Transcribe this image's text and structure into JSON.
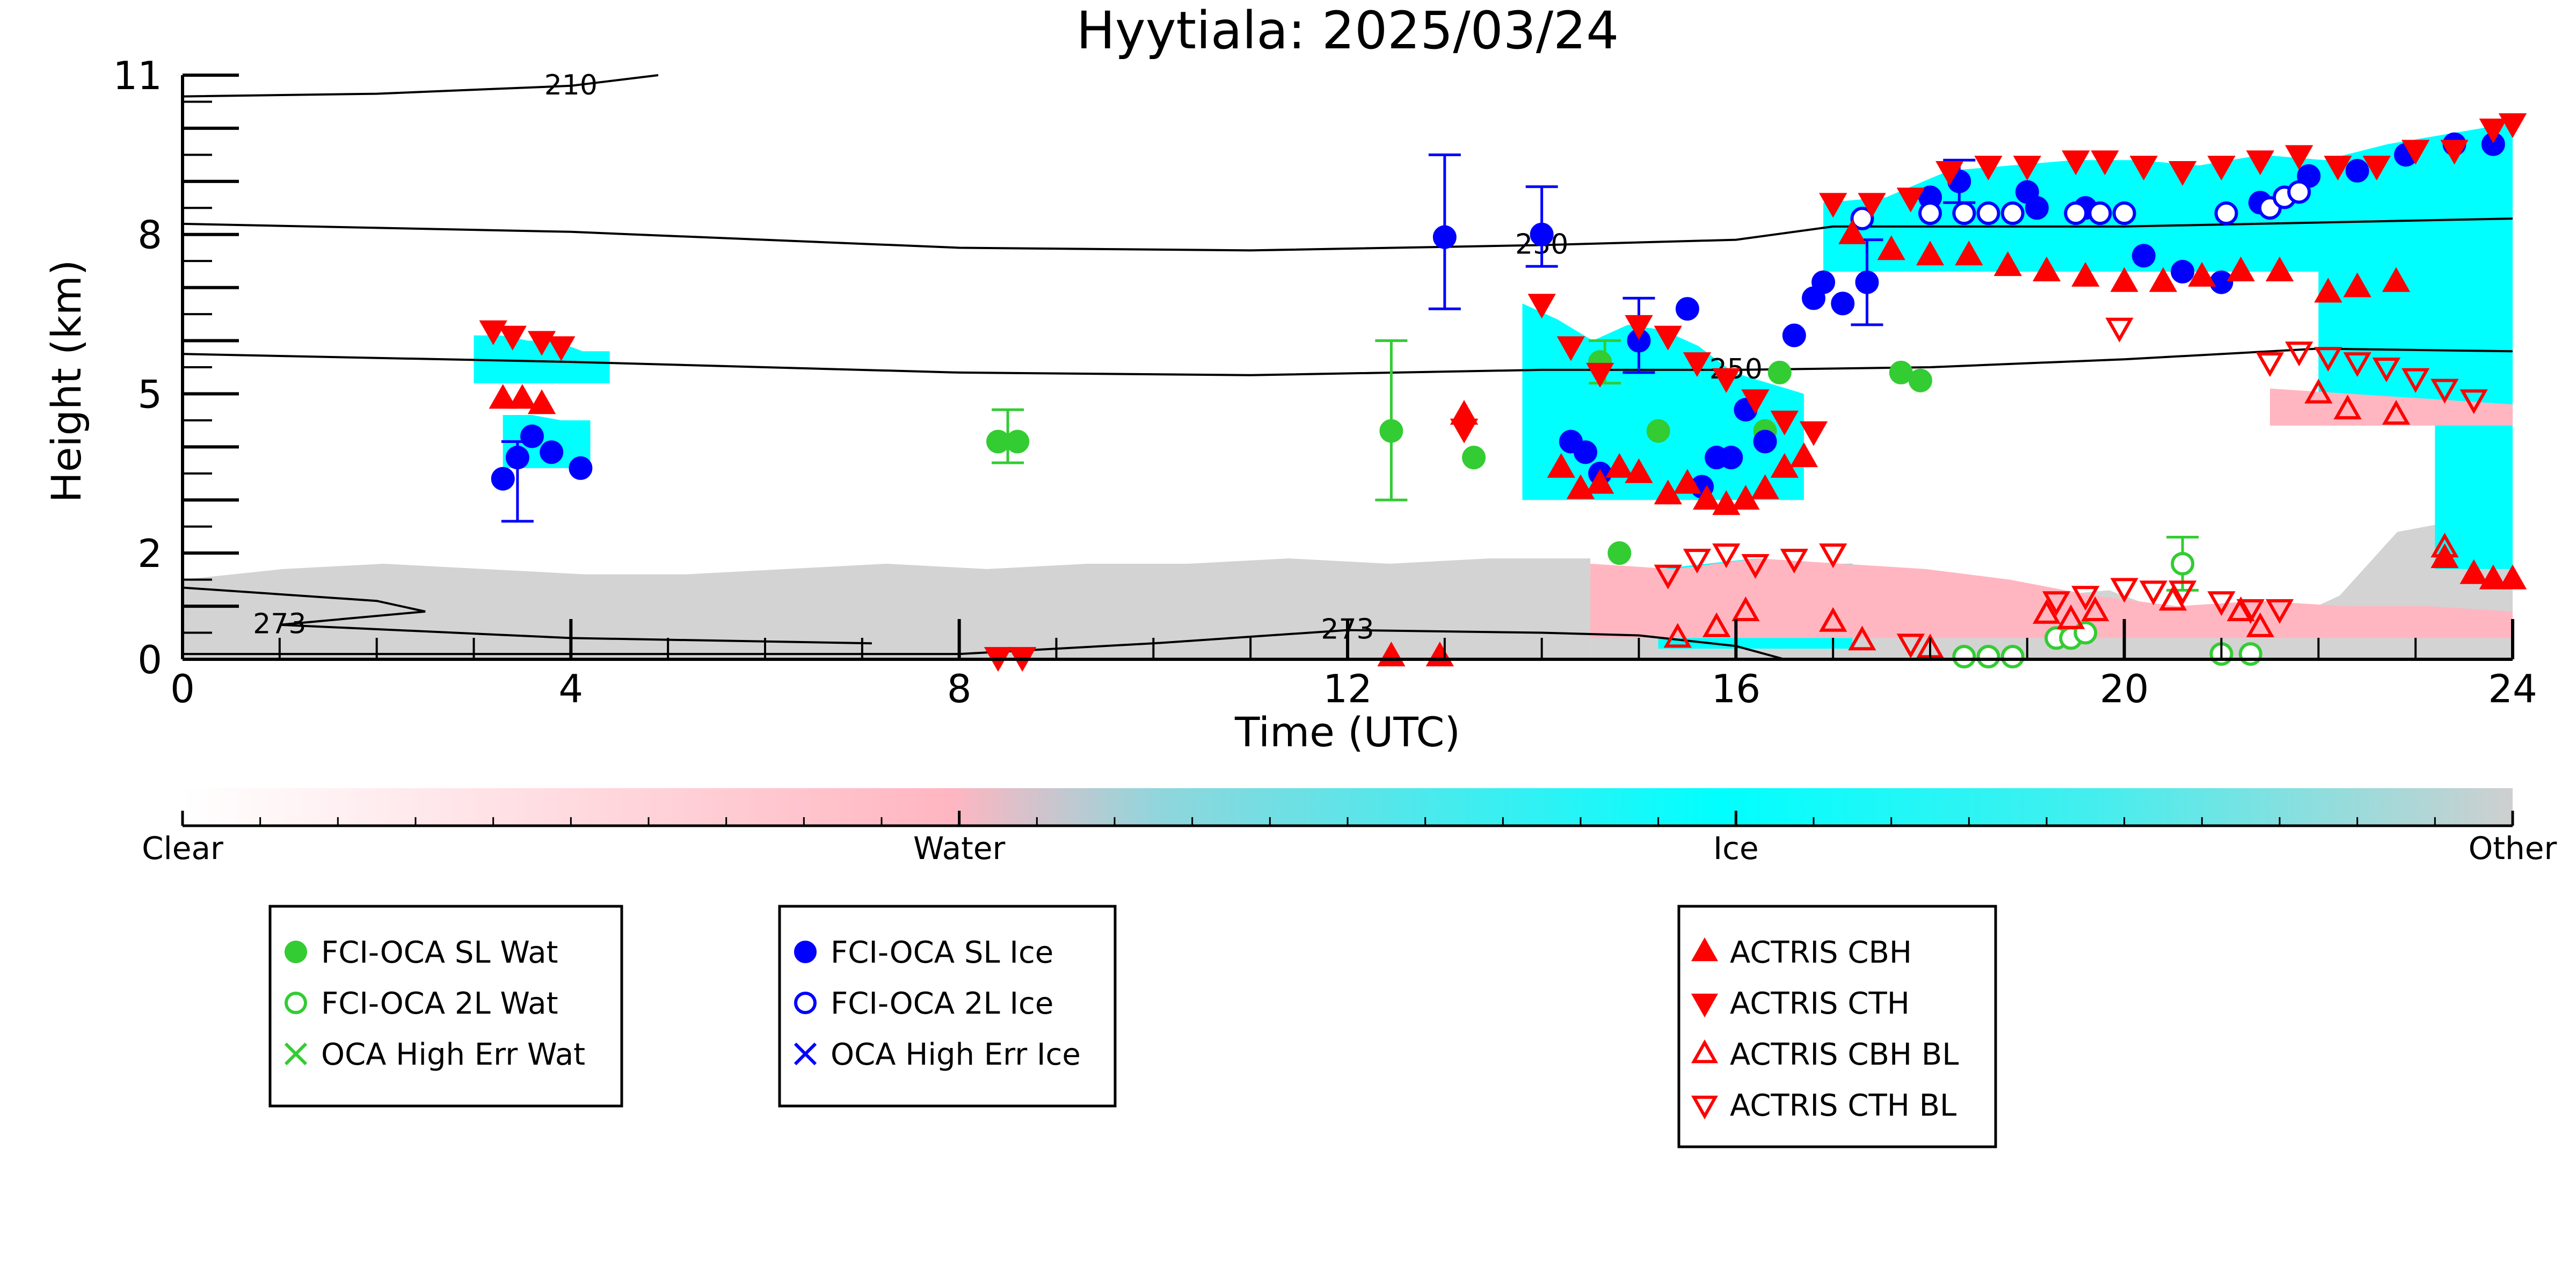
{
  "chart_data": {
    "type": "scatter",
    "title": "Hyytiala: 2025/03/24",
    "xlabel": "Time (UTC)",
    "ylabel": "Height (km)",
    "xlim": [
      0,
      24
    ],
    "ylim": [
      0,
      11
    ],
    "x_ticks": [
      0,
      4,
      8,
      12,
      16,
      20,
      24
    ],
    "y_ticks": [
      0,
      2,
      5,
      8,
      11
    ],
    "y_tick_labels": [
      "0",
      "2",
      "5",
      "8",
      "11"
    ],
    "grid": false,
    "colors": {
      "clear": "#ffffff",
      "water": "#ffb6c1",
      "ice": "#00ffff",
      "other": "#d3d3d3",
      "wat_marker": "#33cc33",
      "ice_marker": "#0000ff",
      "actris": "#ff0000"
    },
    "colorbar": {
      "labels": [
        "Clear",
        "Water",
        "Ice",
        "Other"
      ],
      "placement": "below"
    },
    "temperature_contours": [
      {
        "label": "210",
        "points": [
          [
            0,
            10.6
          ],
          [
            2,
            10.65
          ],
          [
            4,
            10.8
          ],
          [
            4.9,
            11
          ]
        ]
      },
      {
        "label": "230",
        "points": [
          [
            0,
            8.2
          ],
          [
            4,
            8.05
          ],
          [
            8,
            7.75
          ],
          [
            11,
            7.7
          ],
          [
            14,
            7.8
          ],
          [
            16,
            7.9
          ],
          [
            17,
            8.15
          ],
          [
            20,
            8.15
          ],
          [
            24,
            8.3
          ]
        ]
      },
      {
        "label": "250",
        "points": [
          [
            0,
            5.75
          ],
          [
            4,
            5.6
          ],
          [
            8,
            5.4
          ],
          [
            11,
            5.35
          ],
          [
            14,
            5.45
          ],
          [
            16,
            5.45
          ],
          [
            18,
            5.5
          ],
          [
            20,
            5.65
          ],
          [
            22,
            5.85
          ],
          [
            24,
            5.8
          ]
        ]
      },
      {
        "label": "273",
        "points": [
          [
            0,
            1.35
          ],
          [
            2,
            1.1
          ],
          [
            2.5,
            0.9
          ],
          [
            1.0,
            0.65
          ],
          [
            4,
            0.4
          ],
          [
            7.1,
            0.3
          ]
        ]
      },
      {
        "label": "273",
        "points": [
          [
            0,
            0.1
          ],
          [
            4,
            0.1
          ],
          [
            8,
            0.1
          ],
          [
            10,
            0.3
          ],
          [
            12,
            0.55
          ],
          [
            14,
            0.5
          ],
          [
            15,
            0.45
          ],
          [
            16,
            0.25
          ],
          [
            16.5,
            0
          ]
        ]
      }
    ],
    "legends": [
      {
        "entries": [
          "FCI-OCA SL Wat",
          "FCI-OCA 2L Wat",
          "OCA High Err Wat"
        ],
        "placement": "lower-left"
      },
      {
        "entries": [
          "FCI-OCA SL Ice",
          "FCI-OCA 2L Ice",
          "OCA High Err Ice"
        ],
        "placement": "lower-center-left"
      },
      {
        "entries": [
          "ACTRIS CBH",
          "ACTRIS CTH",
          "ACTRIS CBH BL",
          "ACTRIS CTH BL"
        ],
        "placement": "lower-center-right"
      }
    ],
    "series": [
      {
        "name": "FCI-OCA SL Wat",
        "points": [
          [
            8.4,
            4.1
          ],
          [
            8.6,
            4.1
          ],
          [
            12.45,
            4.3
          ],
          [
            13.3,
            3.8
          ],
          [
            14.6,
            5.6
          ],
          [
            15.2,
            4.3
          ],
          [
            16.3,
            4.3
          ],
          [
            16.45,
            5.4
          ],
          [
            17.7,
            5.4
          ],
          [
            17.9,
            5.25
          ],
          [
            14.8,
            2.0
          ]
        ]
      },
      {
        "name": "FCI-OCA 2L Wat",
        "points": [
          [
            20.6,
            1.8
          ],
          [
            19.3,
            0.4
          ],
          [
            19.45,
            0.4
          ],
          [
            19.6,
            0.5
          ],
          [
            18.35,
            0.05
          ],
          [
            18.6,
            0.05
          ],
          [
            18.85,
            0.05
          ],
          [
            21.0,
            0.1
          ],
          [
            21.3,
            0.1
          ]
        ]
      },
      {
        "name": "FCI-OCA SL Ice",
        "points": [
          [
            3.3,
            3.4
          ],
          [
            3.45,
            3.8
          ],
          [
            3.6,
            4.2
          ],
          [
            3.8,
            3.9
          ],
          [
            4.1,
            3.6
          ],
          [
            13.0,
            7.95
          ],
          [
            14.0,
            8.0
          ],
          [
            14.3,
            4.1
          ],
          [
            14.45,
            3.9
          ],
          [
            14.6,
            3.5
          ],
          [
            15.0,
            6.0
          ],
          [
            15.5,
            6.6
          ],
          [
            15.65,
            3.25
          ],
          [
            15.8,
            3.8
          ],
          [
            15.95,
            3.8
          ],
          [
            16.1,
            4.7
          ],
          [
            16.3,
            4.1
          ],
          [
            16.6,
            6.1
          ],
          [
            16.8,
            6.8
          ],
          [
            16.9,
            7.1
          ],
          [
            17.1,
            6.7
          ],
          [
            17.35,
            7.1
          ],
          [
            18.0,
            8.7
          ],
          [
            18.3,
            9.0
          ],
          [
            19.0,
            8.8
          ],
          [
            19.1,
            8.5
          ],
          [
            19.6,
            8.5
          ],
          [
            20.2,
            7.6
          ],
          [
            20.6,
            7.3
          ],
          [
            21.0,
            7.1
          ],
          [
            21.4,
            8.6
          ],
          [
            21.9,
            9.1
          ],
          [
            22.4,
            9.2
          ],
          [
            22.9,
            9.5
          ],
          [
            23.4,
            9.7
          ],
          [
            23.8,
            9.7
          ]
        ]
      },
      {
        "name": "FCI-OCA 2L Ice",
        "points": [
          [
            17.3,
            8.3
          ],
          [
            18.0,
            8.4
          ],
          [
            18.35,
            8.4
          ],
          [
            18.6,
            8.4
          ],
          [
            18.85,
            8.4
          ],
          [
            19.5,
            8.4
          ],
          [
            19.75,
            8.4
          ],
          [
            20.0,
            8.4
          ],
          [
            21.05,
            8.4
          ],
          [
            21.5,
            8.5
          ],
          [
            21.65,
            8.7
          ],
          [
            21.8,
            8.8
          ]
        ]
      },
      {
        "name": "ACTRIS CBH",
        "points": [
          [
            3.3,
            4.9
          ],
          [
            3.5,
            4.9
          ],
          [
            3.7,
            4.8
          ],
          [
            13.2,
            4.6
          ],
          [
            14.2,
            3.6
          ],
          [
            14.4,
            3.2
          ],
          [
            14.6,
            3.3
          ],
          [
            14.8,
            3.6
          ],
          [
            15.0,
            3.5
          ],
          [
            15.3,
            3.1
          ],
          [
            15.5,
            3.3
          ],
          [
            15.7,
            3.0
          ],
          [
            15.9,
            2.9
          ],
          [
            16.1,
            3.0
          ],
          [
            16.3,
            3.2
          ],
          [
            16.5,
            3.6
          ],
          [
            16.7,
            3.8
          ],
          [
            17.2,
            8.0
          ],
          [
            17.6,
            7.7
          ],
          [
            18.0,
            7.6
          ],
          [
            18.4,
            7.6
          ],
          [
            18.8,
            7.4
          ],
          [
            19.2,
            7.3
          ],
          [
            19.6,
            7.2
          ],
          [
            20.0,
            7.1
          ],
          [
            20.4,
            7.1
          ],
          [
            20.8,
            7.2
          ],
          [
            21.2,
            7.3
          ],
          [
            21.6,
            7.3
          ],
          [
            22.1,
            6.9
          ],
          [
            22.4,
            7.0
          ],
          [
            22.8,
            7.1
          ],
          [
            23.3,
            1.9
          ],
          [
            23.6,
            1.6
          ],
          [
            23.8,
            1.5
          ],
          [
            24.0,
            1.5
          ],
          [
            12.45,
            0.05
          ],
          [
            12.95,
            0.05
          ]
        ]
      },
      {
        "name": "ACTRIS CTH",
        "points": [
          [
            3.2,
            6.2
          ],
          [
            3.4,
            6.1
          ],
          [
            3.7,
            6.0
          ],
          [
            3.9,
            5.9
          ],
          [
            13.2,
            4.35
          ],
          [
            14.0,
            6.7
          ],
          [
            14.3,
            5.9
          ],
          [
            14.6,
            5.4
          ],
          [
            15.0,
            6.3
          ],
          [
            15.3,
            6.1
          ],
          [
            15.6,
            5.6
          ],
          [
            15.9,
            5.3
          ],
          [
            16.2,
            4.9
          ],
          [
            16.5,
            4.5
          ],
          [
            16.8,
            4.3
          ],
          [
            17.0,
            8.6
          ],
          [
            17.4,
            8.6
          ],
          [
            17.8,
            8.7
          ],
          [
            18.2,
            9.2
          ],
          [
            18.6,
            9.3
          ],
          [
            19.0,
            9.3
          ],
          [
            19.5,
            9.4
          ],
          [
            19.8,
            9.4
          ],
          [
            20.2,
            9.3
          ],
          [
            20.6,
            9.2
          ],
          [
            21.0,
            9.3
          ],
          [
            21.4,
            9.4
          ],
          [
            21.8,
            9.5
          ],
          [
            22.2,
            9.3
          ],
          [
            22.6,
            9.3
          ],
          [
            23.0,
            9.6
          ],
          [
            23.4,
            9.6
          ],
          [
            23.8,
            10.0
          ],
          [
            24.0,
            10.1
          ],
          [
            8.4,
            0.05
          ],
          [
            8.65,
            0.05
          ]
        ]
      },
      {
        "name": "ACTRIS CBH BL",
        "points": [
          [
            15.4,
            0.4
          ],
          [
            15.8,
            0.6
          ],
          [
            16.1,
            0.9
          ],
          [
            17.0,
            0.7
          ],
          [
            17.3,
            0.35
          ],
          [
            18.0,
            0.2
          ],
          [
            19.2,
            0.85
          ],
          [
            19.45,
            0.75
          ],
          [
            19.7,
            0.9
          ],
          [
            20.5,
            1.1
          ],
          [
            21.2,
            0.9
          ],
          [
            21.4,
            0.6
          ],
          [
            23.3,
            2.1
          ],
          [
            22.0,
            5.0
          ],
          [
            22.3,
            4.7
          ],
          [
            22.8,
            4.6
          ]
        ]
      },
      {
        "name": "ACTRIS CTH BL",
        "points": [
          [
            15.3,
            1.6
          ],
          [
            15.6,
            1.9
          ],
          [
            15.9,
            2.0
          ],
          [
            16.2,
            1.8
          ],
          [
            16.6,
            1.9
          ],
          [
            17.0,
            2.0
          ],
          [
            17.8,
            0.3
          ],
          [
            19.3,
            1.1
          ],
          [
            19.6,
            1.2
          ],
          [
            20.0,
            1.35
          ],
          [
            20.3,
            1.3
          ],
          [
            20.6,
            1.3
          ],
          [
            21.0,
            1.1
          ],
          [
            21.3,
            0.95
          ],
          [
            21.6,
            0.95
          ],
          [
            19.95,
            6.25
          ],
          [
            21.5,
            5.6
          ],
          [
            21.8,
            5.8
          ],
          [
            22.1,
            5.7
          ],
          [
            22.4,
            5.6
          ],
          [
            22.7,
            5.5
          ],
          [
            23.0,
            5.3
          ],
          [
            23.3,
            5.1
          ],
          [
            23.6,
            4.9
          ]
        ]
      }
    ],
    "error_bars": [
      {
        "color": "wat_marker",
        "x": 12.45,
        "y0": 3.0,
        "y1": 6.0
      },
      {
        "color": "wat_marker",
        "x": 8.5,
        "y0": 3.7,
        "y1": 4.7
      },
      {
        "color": "wat_marker",
        "x": 14.65,
        "y0": 5.2,
        "y1": 6.0
      },
      {
        "color": "wat_marker",
        "x": 20.6,
        "y0": 1.3,
        "y1": 2.3
      },
      {
        "color": "ice_marker",
        "x": 3.45,
        "y0": 2.6,
        "y1": 4.1
      },
      {
        "color": "ice_marker",
        "x": 13.0,
        "y0": 6.6,
        "y1": 9.5
      },
      {
        "color": "ice_marker",
        "x": 14.0,
        "y0": 7.4,
        "y1": 8.9
      },
      {
        "color": "ice_marker",
        "x": 15.0,
        "y0": 5.4,
        "y1": 6.8
      },
      {
        "color": "ice_marker",
        "x": 17.35,
        "y0": 6.3,
        "y1": 7.9
      },
      {
        "color": "ice_marker",
        "x": 18.3,
        "y0": 8.6,
        "y1": 9.4
      }
    ],
    "classification_regions": [
      {
        "class": "other",
        "x0": 0.0,
        "x1": 14.5,
        "y_bottom": 0.0,
        "y_top": [
          1.5,
          1.7,
          1.8,
          1.7,
          1.6,
          1.6,
          1.7,
          1.8,
          1.7,
          1.8,
          1.8,
          1.9,
          1.8,
          1.9,
          1.9
        ]
      },
      {
        "class": "other",
        "x0": 14.5,
        "x1": 24.0,
        "y_bottom": 0.0,
        "y_top": [
          1.6,
          1.5,
          1.5,
          1.8,
          1.6,
          1.3,
          1.5,
          1.1,
          1.2,
          1.3,
          0.9,
          0.8,
          0.7,
          1.2,
          2.4,
          2.6,
          2.8
        ]
      },
      {
        "class": "ice",
        "x0": 3.0,
        "x1": 4.4,
        "y_bottom": 5.2,
        "y_top": [
          6.1,
          6.1,
          6.0,
          6.0,
          5.8,
          5.8
        ]
      },
      {
        "class": "ice",
        "x0": 3.3,
        "x1": 4.2,
        "y_bottom": 3.6,
        "y_top": [
          4.6,
          4.6,
          4.5,
          4.5
        ]
      },
      {
        "class": "ice",
        "x0": 13.8,
        "x1": 16.7,
        "y_bottom": 3.0,
        "y_top": [
          6.7,
          6.4,
          6.0,
          6.3,
          6.2,
          5.9,
          5.4,
          5.2,
          5.0
        ]
      },
      {
        "class": "ice",
        "x0": 16.9,
        "x1": 24.0,
        "y_bottom": 7.3,
        "y_top": [
          8.6,
          8.7,
          9.2,
          9.3,
          9.4,
          9.4,
          9.3,
          9.5,
          9.4,
          9.7,
          9.9,
          10.1
        ]
      },
      {
        "class": "ice",
        "x0": 22.0,
        "x1": 24.0,
        "y_bottom": 4.5,
        "y_top": [
          7.3,
          7.5,
          7.6,
          8.0,
          8.5
        ]
      },
      {
        "class": "ice",
        "x0": 23.2,
        "x1": 24.0,
        "y_bottom": 1.7,
        "y_top": [
          6.0,
          6.5,
          7.5
        ]
      },
      {
        "class": "ice",
        "x0": 15.2,
        "x1": 17.2,
        "y_bottom": 0.2,
        "y_top": [
          1.7,
          1.8,
          1.9,
          1.8,
          1.8
        ]
      },
      {
        "class": "water",
        "x0": 14.5,
        "x1": 24.0,
        "y_bottom": 0.4,
        "y_top": [
          1.8,
          1.7,
          1.9,
          1.8,
          1.7,
          1.5,
          1.2,
          1.0,
          1.1,
          1.0,
          1.0,
          0.9
        ]
      },
      {
        "class": "water",
        "x0": 21.5,
        "x1": 24.0,
        "y_bottom": 4.4,
        "y_top": [
          5.1,
          5.0,
          4.9,
          4.8
        ]
      }
    ]
  }
}
